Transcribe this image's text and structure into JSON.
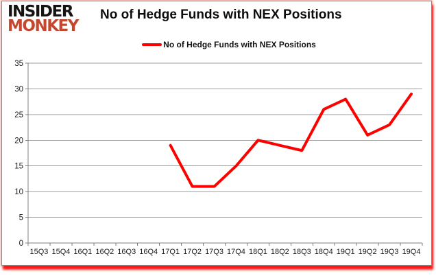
{
  "branding": {
    "logo_line1": "INSIDER",
    "logo_line2": "MONKEY",
    "logo_color_primary": "#161413",
    "logo_color_secondary": "#c5472e"
  },
  "header": {
    "title": "No of Hedge Funds with NEX Positions"
  },
  "legend": {
    "label": "No of Hedge Funds with NEX Positions",
    "marker_color": "#ff0000"
  },
  "chart_data": {
    "type": "line",
    "title": "No of Hedge Funds with NEX Positions",
    "categories": [
      "15Q3",
      "15Q4",
      "16Q1",
      "16Q2",
      "16Q3",
      "16Q4",
      "17Q1",
      "17Q2",
      "17Q3",
      "17Q4",
      "18Q1",
      "18Q2",
      "18Q3",
      "18Q4",
      "19Q1",
      "19Q2",
      "19Q3",
      "19Q4"
    ],
    "series": [
      {
        "name": "No of Hedge Funds with NEX Positions",
        "color": "#ff0000",
        "values": [
          null,
          null,
          null,
          null,
          null,
          null,
          19,
          11,
          11,
          15,
          20,
          19,
          18,
          26,
          28,
          21,
          23,
          29
        ]
      }
    ],
    "xlabel": "",
    "ylabel": "",
    "ylim": [
      0,
      35
    ],
    "yticks": [
      0,
      5,
      10,
      15,
      20,
      25,
      30,
      35
    ],
    "grid": true,
    "legend_position": "top-center",
    "gridline_color": "#9e9e9e",
    "axis_color": "#7f7f7f",
    "tick_label_color": "#1a1a1a"
  }
}
